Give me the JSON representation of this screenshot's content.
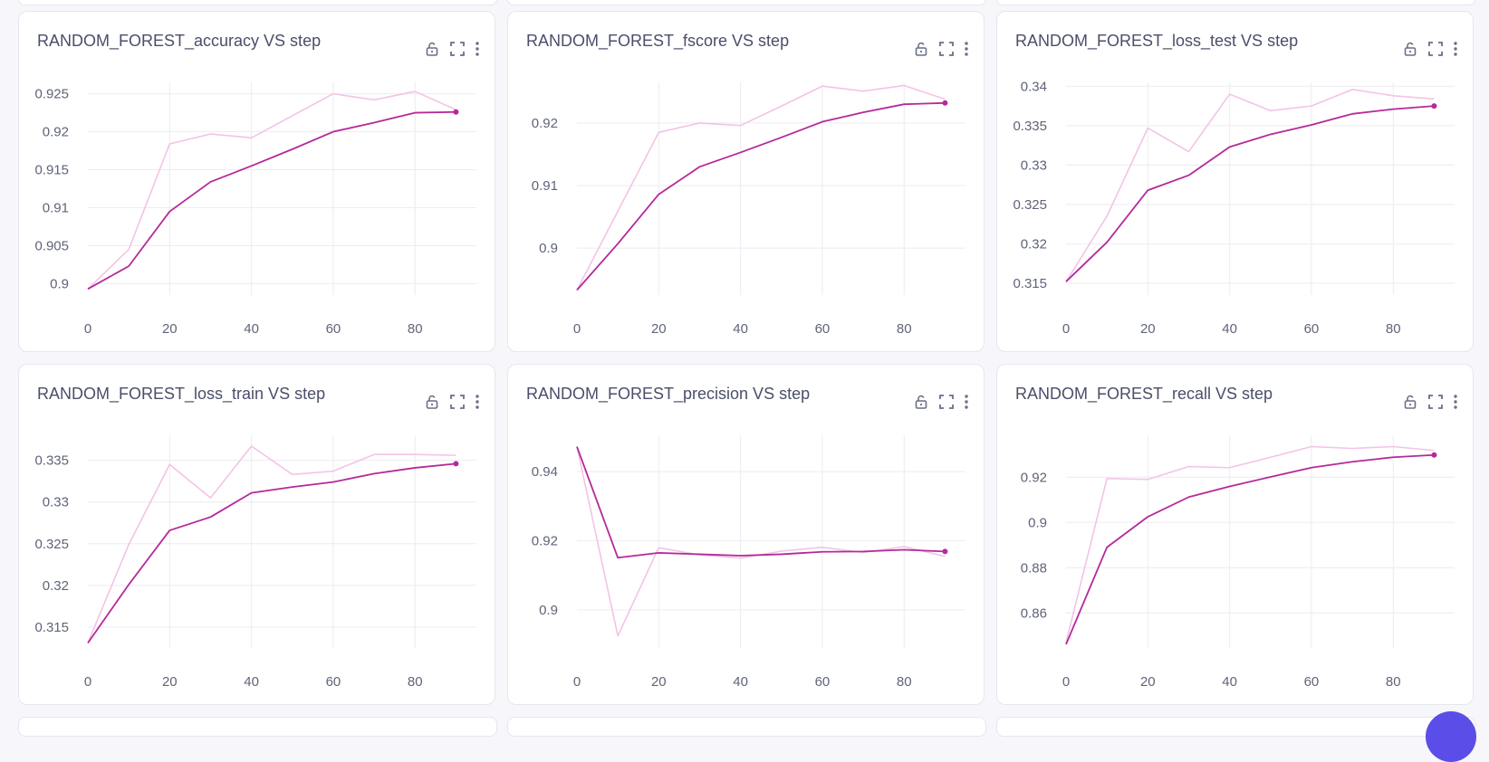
{
  "colors": {
    "raw_line": "#f3c3e6",
    "smooth_line": "#b5299a",
    "grid": "#ececf2",
    "fab": "#5b4de8"
  },
  "icons": [
    "lock-open-icon",
    "fullscreen-icon",
    "more-vertical-icon"
  ],
  "charts": [
    {
      "title": "RANDOM_FOREST_accuracy VS step",
      "chart_data": {
        "type": "line",
        "x": [
          0,
          10,
          20,
          30,
          40,
          50,
          60,
          70,
          80,
          90
        ],
        "xticks": [
          "0",
          "20",
          "40",
          "60",
          "80"
        ],
        "yticks": [
          "0.9",
          "0.905",
          "0.91",
          "0.915",
          "0.92",
          "0.925"
        ],
        "xlim": [
          0,
          95
        ],
        "ylim": [
          0.8985,
          0.9265
        ],
        "series": [
          {
            "role": "raw",
            "values": [
              0.8993,
              0.9045,
              0.9184,
              0.9197,
              0.9192,
              0.9221,
              0.925,
              0.9242,
              0.9253,
              0.9229
            ]
          },
          {
            "role": "smoothed",
            "values": [
              0.8993,
              0.9023,
              0.9095,
              0.9134,
              0.9155,
              0.9177,
              0.92,
              0.9212,
              0.9225,
              0.9226
            ]
          }
        ]
      }
    },
    {
      "title": "RANDOM_FOREST_fscore VS step",
      "chart_data": {
        "type": "line",
        "x": [
          0,
          10,
          20,
          30,
          40,
          50,
          60,
          70,
          80,
          90
        ],
        "xticks": [
          "0",
          "20",
          "40",
          "60",
          "80"
        ],
        "yticks": [
          "0.9",
          "0.91",
          "0.92"
        ],
        "xlim": [
          0,
          95
        ],
        "ylim": [
          0.8925,
          0.9265
        ],
        "series": [
          {
            "role": "raw",
            "values": [
              0.8933,
              0.9059,
              0.9185,
              0.92,
              0.9196,
              0.9227,
              0.9259,
              0.9251,
              0.926,
              0.9238
            ]
          },
          {
            "role": "smoothed",
            "values": [
              0.8933,
              0.9007,
              0.9086,
              0.913,
              0.9153,
              0.9177,
              0.9202,
              0.9217,
              0.923,
              0.9232
            ]
          }
        ]
      }
    },
    {
      "title": "RANDOM_FOREST_loss_test VS step",
      "chart_data": {
        "type": "line",
        "x": [
          0,
          10,
          20,
          30,
          40,
          50,
          60,
          70,
          80,
          90
        ],
        "xticks": [
          "0",
          "20",
          "40",
          "60",
          "80"
        ],
        "yticks": [
          "0.315",
          "0.32",
          "0.325",
          "0.33",
          "0.335",
          "0.34"
        ],
        "xlim": [
          0,
          95
        ],
        "ylim": [
          0.3135,
          0.3405
        ],
        "series": [
          {
            "role": "raw",
            "values": [
              0.3152,
              0.3235,
              0.3347,
              0.3317,
              0.339,
              0.3369,
              0.3375,
              0.3396,
              0.3388,
              0.3384
            ]
          },
          {
            "role": "smoothed",
            "values": [
              0.3152,
              0.3202,
              0.3268,
              0.3287,
              0.3323,
              0.3339,
              0.3351,
              0.3365,
              0.3371,
              0.3375
            ]
          }
        ]
      }
    },
    {
      "title": "RANDOM_FOREST_loss_train VS step",
      "chart_data": {
        "type": "line",
        "x": [
          0,
          10,
          20,
          30,
          40,
          50,
          60,
          70,
          80,
          90
        ],
        "xticks": [
          "0",
          "20",
          "40",
          "60",
          "80"
        ],
        "yticks": [
          "0.315",
          "0.32",
          "0.325",
          "0.33",
          "0.335"
        ],
        "xlim": [
          0,
          95
        ],
        "ylim": [
          0.3125,
          0.338
        ],
        "series": [
          {
            "role": "raw",
            "values": [
              0.3131,
              0.3249,
              0.3345,
              0.3305,
              0.3367,
              0.3333,
              0.3337,
              0.3357,
              0.3357,
              0.3356
            ]
          },
          {
            "role": "smoothed",
            "values": [
              0.3131,
              0.3201,
              0.3266,
              0.3282,
              0.3311,
              0.3318,
              0.3324,
              0.3334,
              0.3341,
              0.3346
            ]
          }
        ]
      }
    },
    {
      "title": "RANDOM_FOREST_precision VS step",
      "chart_data": {
        "type": "line",
        "x": [
          0,
          10,
          20,
          30,
          40,
          50,
          60,
          70,
          80,
          90
        ],
        "xticks": [
          "0",
          "20",
          "40",
          "60",
          "80"
        ],
        "yticks": [
          "0.9",
          "0.92",
          "0.94"
        ],
        "xlim": [
          0,
          95
        ],
        "ylim": [
          0.889,
          0.9505
        ],
        "series": [
          {
            "role": "raw",
            "values": [
              0.9472,
              0.8925,
              0.918,
              0.9159,
              0.915,
              0.917,
              0.9181,
              0.9166,
              0.9183,
              0.9155
            ]
          },
          {
            "role": "smoothed",
            "values": [
              0.9472,
              0.9151,
              0.9165,
              0.9161,
              0.9157,
              0.9161,
              0.9168,
              0.9169,
              0.9174,
              0.9169
            ]
          }
        ]
      }
    },
    {
      "title": "RANDOM_FOREST_recall VS step",
      "chart_data": {
        "type": "line",
        "x": [
          0,
          10,
          20,
          30,
          40,
          50,
          60,
          70,
          80,
          90
        ],
        "xticks": [
          "0",
          "20",
          "40",
          "60",
          "80"
        ],
        "yticks": [
          "0.86",
          "0.88",
          "0.9",
          "0.92"
        ],
        "xlim": [
          0,
          95
        ],
        "ylim": [
          0.8445,
          0.9385
        ],
        "series": [
          {
            "role": "raw",
            "values": [
              0.8469,
              0.9194,
              0.919,
              0.9247,
              0.9242,
              0.9288,
              0.9335,
              0.9327,
              0.9335,
              0.9318
            ]
          },
          {
            "role": "smoothed",
            "values": [
              0.8461,
              0.889,
              0.9025,
              0.9112,
              0.9159,
              0.9201,
              0.9242,
              0.9268,
              0.9288,
              0.9298
            ]
          }
        ]
      }
    }
  ]
}
